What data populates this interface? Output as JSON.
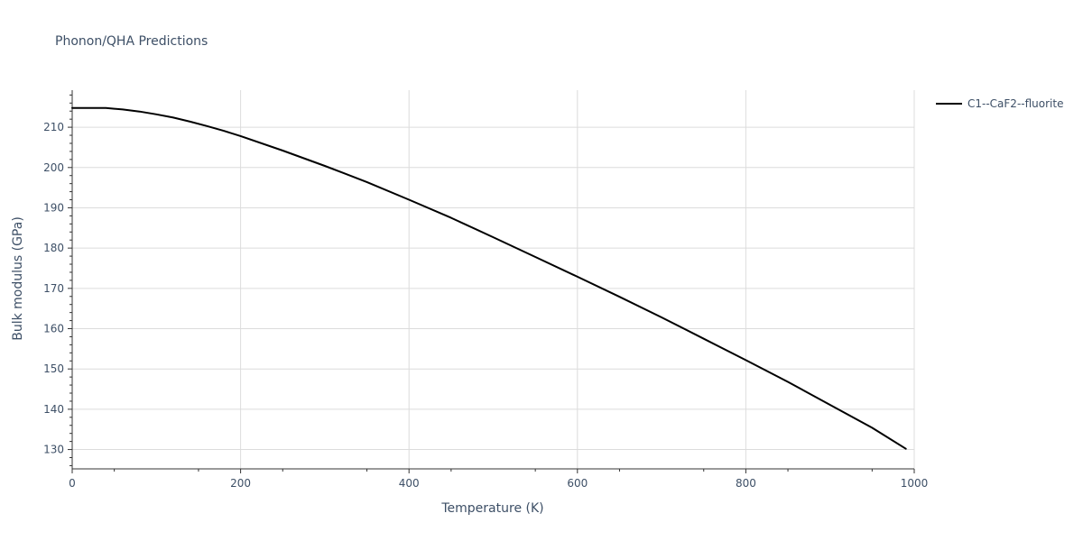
{
  "chart_data": {
    "type": "line",
    "title": "Phonon/QHA Predictions",
    "xlabel": "Temperature (K)",
    "ylabel": "Bulk modulus (GPa)",
    "xlim": [
      0,
      1000
    ],
    "ylim": [
      125.2,
      219.2
    ],
    "x_ticks": [
      0,
      200,
      400,
      600,
      800,
      1000
    ],
    "y_ticks": [
      130,
      140,
      150,
      160,
      170,
      180,
      190,
      200,
      210
    ],
    "grid": true,
    "legend_position": "top-right",
    "series": [
      {
        "name": "C1--CaF2--fluorite",
        "color": "#000000",
        "x": [
          0,
          20,
          40,
          50,
          60,
          80,
          100,
          120,
          140,
          160,
          180,
          200,
          250,
          300,
          350,
          400,
          450,
          500,
          550,
          600,
          650,
          700,
          750,
          800,
          850,
          900,
          950,
          990
        ],
        "y": [
          214.8,
          214.8,
          214.8,
          214.6,
          214.4,
          213.9,
          213.2,
          212.4,
          211.4,
          210.3,
          209.1,
          207.8,
          204.2,
          200.4,
          196.4,
          192.0,
          187.5,
          182.7,
          177.8,
          172.9,
          167.9,
          162.8,
          157.5,
          152.2,
          146.8,
          141.1,
          135.4,
          130.2
        ]
      }
    ]
  }
}
